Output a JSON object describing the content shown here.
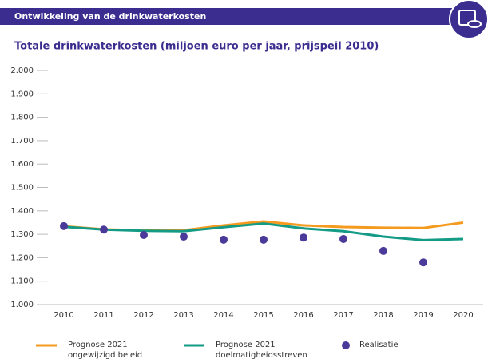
{
  "header": {
    "title": "Ontwikkeling van de drinkwaterkosten"
  },
  "chart_data": {
    "type": "line",
    "title": "Totale drinkwaterkosten (miljoen euro per jaar,  prijspeil 2010)",
    "categories": [
      "2010",
      "2011",
      "2012",
      "2013",
      "2014",
      "2015",
      "2016",
      "2017",
      "2018",
      "2019",
      "2020"
    ],
    "series": [
      {
        "name": "Prognose 2021 ongewijzigd beleid",
        "color": "#f39a1f",
        "kind": "line",
        "values": [
          1334,
          1321,
          1317,
          1317,
          1338,
          1355,
          1338,
          1331,
          1328,
          1327,
          1350
        ]
      },
      {
        "name": "Prognose 2021 doelmatigheidsstreven",
        "color": "#139b86",
        "kind": "line",
        "values": [
          1332,
          1320,
          1315,
          1313,
          1330,
          1346,
          1325,
          1313,
          1290,
          1275,
          1280
        ]
      },
      {
        "name": "Realisatie",
        "color": "#4b3a9a",
        "kind": "dots",
        "values": [
          1335,
          1320,
          1297,
          1290,
          1277,
          1277,
          1286,
          1280,
          1229,
          1180,
          null
        ]
      }
    ],
    "ylim": [
      1000,
      2000
    ],
    "yticks": [
      {
        "value": 1000,
        "label": "1.000"
      },
      {
        "value": 1100,
        "label": "1.100"
      },
      {
        "value": 1200,
        "label": "1.200"
      },
      {
        "value": 1300,
        "label": "1.300"
      },
      {
        "value": 1400,
        "label": "1.400"
      },
      {
        "value": 1500,
        "label": "1.500"
      },
      {
        "value": 1600,
        "label": "1.600"
      },
      {
        "value": 1700,
        "label": "1.700"
      },
      {
        "value": 1800,
        "label": "1.800"
      },
      {
        "value": 1900,
        "label": "1.900"
      },
      {
        "value": 2000,
        "label": "2.000"
      }
    ]
  }
}
